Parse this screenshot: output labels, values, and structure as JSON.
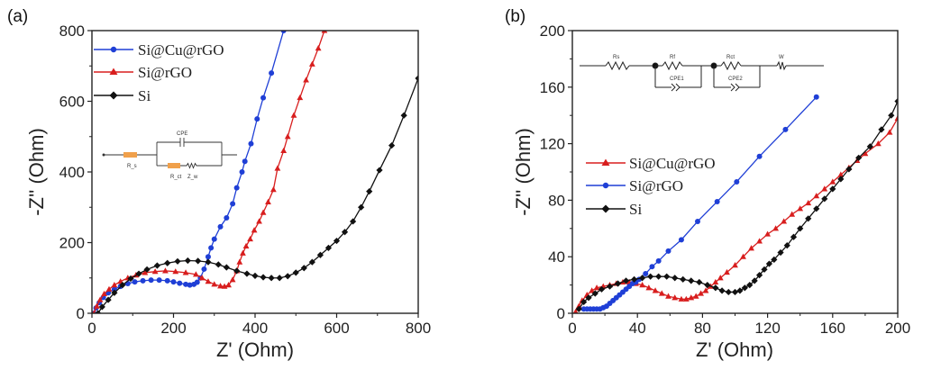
{
  "chart_data": [
    {
      "type": "scatter",
      "panel_label": "(a)",
      "title": "",
      "xlabel": "Z' (Ohm)",
      "ylabel": "-Z'' (Ohm)",
      "xlim": [
        0,
        800
      ],
      "ylim": [
        0,
        800
      ],
      "xticks": [
        "0",
        "200",
        "400",
        "600",
        "800"
      ],
      "yticks": [
        "0",
        "200",
        "400",
        "600",
        "800"
      ],
      "grid": false,
      "legend_position": "top-left",
      "series": [
        {
          "name": "Si@Cu@rGO",
          "color": "#1f3fd6",
          "marker": "circle",
          "x": [
            5,
            10,
            18,
            28,
            40,
            55,
            70,
            88,
            105,
            125,
            145,
            165,
            185,
            200,
            215,
            230,
            240,
            250,
            258,
            266,
            275,
            285,
            292,
            300,
            315,
            330,
            345,
            355,
            368,
            375,
            390,
            405,
            420,
            440,
            470
          ],
          "y": [
            0,
            15,
            30,
            45,
            58,
            68,
            76,
            84,
            89,
            92,
            94,
            94,
            92,
            89,
            85,
            82,
            80,
            82,
            88,
            100,
            125,
            160,
            185,
            210,
            245,
            270,
            310,
            355,
            400,
            430,
            480,
            550,
            610,
            680,
            800
          ]
        },
        {
          "name": "Si@rGO",
          "color": "#d81e1e",
          "marker": "triangle",
          "x": [
            5,
            12,
            20,
            30,
            42,
            55,
            70,
            88,
            108,
            130,
            155,
            180,
            205,
            230,
            255,
            270,
            285,
            300,
            315,
            325,
            335,
            345,
            355,
            362,
            370,
            378,
            388,
            398,
            410,
            420,
            432,
            445,
            455,
            470,
            480,
            495,
            510,
            525,
            540,
            555,
            570
          ],
          "y": [
            0,
            20,
            38,
            55,
            68,
            80,
            90,
            100,
            108,
            115,
            118,
            120,
            118,
            115,
            110,
            100,
            90,
            82,
            77,
            76,
            80,
            95,
            120,
            145,
            170,
            190,
            210,
            235,
            260,
            285,
            315,
            350,
            410,
            460,
            500,
            560,
            610,
            660,
            705,
            750,
            800
          ]
        },
        {
          "name": "Si",
          "color": "#111111",
          "marker": "diamond",
          "x": [
            15,
            25,
            40,
            55,
            75,
            95,
            115,
            135,
            160,
            185,
            210,
            235,
            260,
            285,
            310,
            330,
            355,
            380,
            400,
            420,
            440,
            460,
            480,
            500,
            520,
            540,
            560,
            580,
            600,
            620,
            640,
            660,
            680,
            705,
            735,
            765,
            800
          ],
          "y": [
            0,
            18,
            38,
            58,
            80,
            98,
            112,
            124,
            135,
            142,
            147,
            149,
            148,
            145,
            138,
            130,
            120,
            112,
            106,
            102,
            100,
            100,
            105,
            115,
            128,
            145,
            165,
            185,
            205,
            230,
            260,
            300,
            345,
            405,
            475,
            560,
            665
          ]
        }
      ],
      "inset_circuit": {
        "elements": [
          "R_s",
          "CPE",
          "R_ct",
          "Z_w"
        ]
      }
    },
    {
      "type": "scatter",
      "panel_label": "(b)",
      "title": "",
      "xlabel": "Z' (Ohm)",
      "ylabel": "-Z'' (Ohm)",
      "xlim": [
        0,
        200
      ],
      "ylim": [
        0,
        200
      ],
      "xticks": [
        "0",
        "40",
        "80",
        "120",
        "160",
        "200"
      ],
      "yticks": [
        "0",
        "40",
        "80",
        "120",
        "160",
        "200"
      ],
      "grid": false,
      "legend_position": "center-left",
      "series": [
        {
          "name": "Si@Cu@rGO",
          "color": "#d81e1e",
          "marker": "triangle",
          "x": [
            2,
            4,
            6,
            9,
            12,
            15,
            19,
            23,
            27,
            31,
            35,
            39,
            43,
            47,
            51,
            55,
            59,
            63,
            67,
            70,
            73,
            76,
            79,
            82,
            85,
            88,
            91,
            95,
            100,
            105,
            110,
            115,
            120,
            125,
            130,
            135,
            140,
            145,
            150,
            155,
            160,
            165,
            170,
            175,
            180,
            188,
            195,
            200
          ],
          "y": [
            1,
            5,
            9,
            13,
            16,
            18,
            19,
            20,
            21,
            22,
            22,
            21,
            20,
            18,
            16,
            14,
            12,
            11,
            10,
            10,
            11,
            12,
            14,
            16,
            19,
            22,
            25,
            29,
            34,
            40,
            46,
            51,
            56,
            60,
            65,
            70,
            74,
            78,
            83,
            88,
            93,
            98,
            103,
            108,
            113,
            120,
            128,
            138
          ]
        },
        {
          "name": "Si@rGO",
          "color": "#1f3fd6",
          "marker": "circle",
          "x": [
            7,
            9,
            11,
            13,
            15,
            17,
            19,
            21,
            23,
            25,
            27,
            29,
            31,
            33,
            35,
            37,
            39,
            41,
            45,
            49,
            53,
            59,
            67,
            77,
            89,
            101,
            115,
            131,
            150
          ],
          "y": [
            3,
            3,
            3,
            3,
            3,
            3,
            4,
            5,
            7,
            9,
            11,
            13,
            15,
            17,
            19,
            21,
            22,
            24,
            28,
            33,
            37,
            44,
            52,
            65,
            79,
            93,
            111,
            130,
            153
          ]
        },
        {
          "name": "Si",
          "color": "#111111",
          "marker": "diamond",
          "x": [
            4,
            7,
            10,
            14,
            18,
            23,
            28,
            33,
            38,
            43,
            48,
            53,
            58,
            63,
            68,
            73,
            78,
            83,
            88,
            92,
            96,
            100,
            103,
            106,
            109,
            112,
            115,
            118,
            121,
            124,
            128,
            132,
            136,
            140,
            145,
            150,
            155,
            160,
            165,
            170,
            176,
            183,
            190,
            196,
            200
          ],
          "y": [
            3,
            8,
            11,
            14,
            17,
            19,
            21,
            23,
            24,
            25,
            26,
            26,
            26,
            25,
            24,
            23,
            22,
            20,
            18,
            16,
            15,
            15,
            16,
            18,
            20,
            23,
            27,
            31,
            35,
            38,
            43,
            48,
            54,
            60,
            67,
            74,
            81,
            88,
            95,
            102,
            110,
            118,
            130,
            140,
            150
          ]
        }
      ],
      "inset_circuit": {
        "elements": [
          "Rs",
          "Rf",
          "CPE1",
          "Rct",
          "CPE2",
          "W",
          "Wo"
        ]
      }
    }
  ]
}
